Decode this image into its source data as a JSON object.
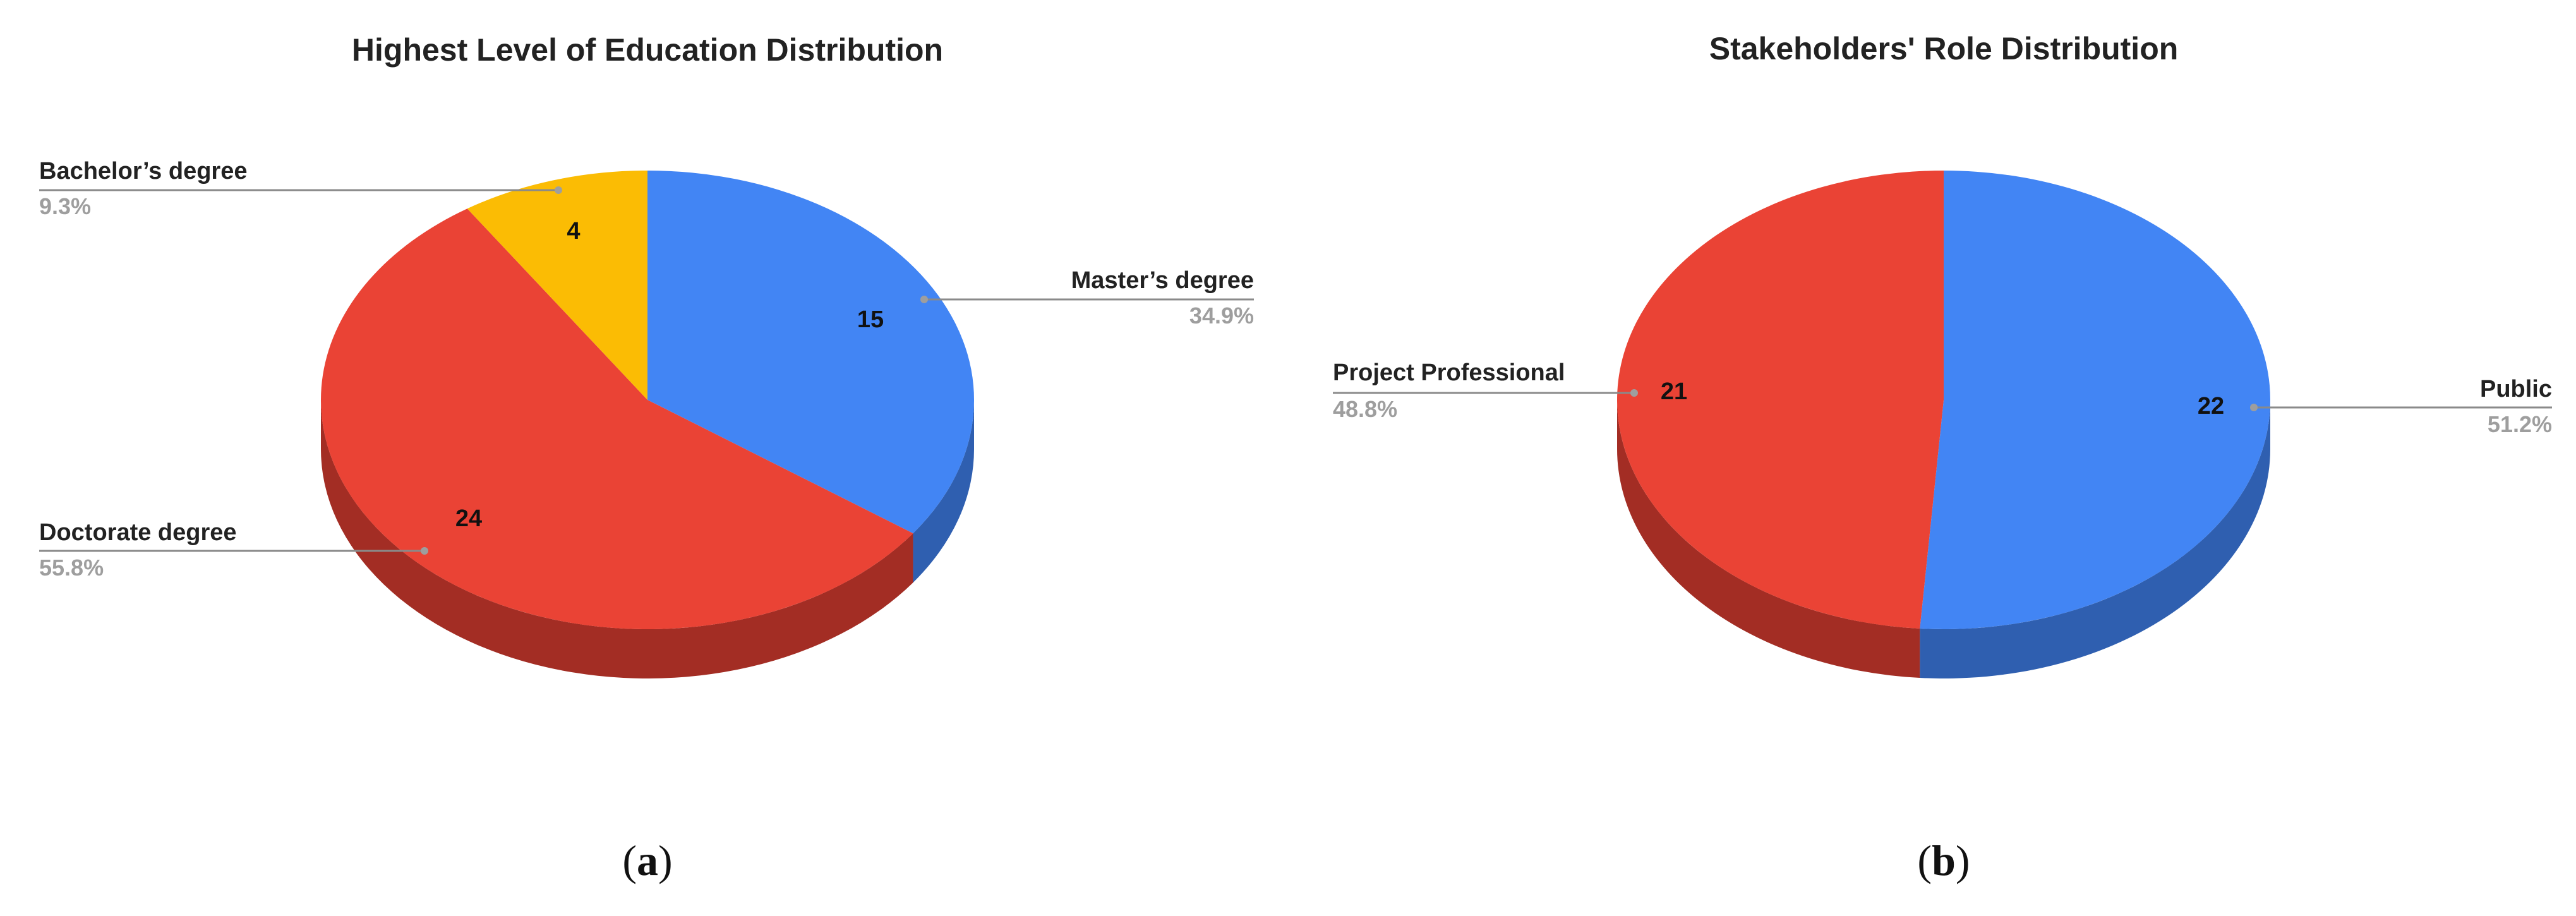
{
  "chart_data": [
    {
      "type": "pie",
      "title": "Highest Level of Education Distribution",
      "caption_letter": "a",
      "slices": [
        {
          "label": "Master’s degree",
          "value": 15,
          "percent_text": "34.9%",
          "color": "#4285f4",
          "side_color": "#2f5fb0"
        },
        {
          "label": "Doctorate degree",
          "value": 24,
          "percent_text": "55.8%",
          "color": "#ea4335",
          "side_color": "#a32d24"
        },
        {
          "label": "Bachelor’s degree",
          "value": 4,
          "percent_text": "9.3%",
          "color": "#fbbc04",
          "side_color": "#c29203"
        }
      ],
      "legend": "none",
      "three_d": true
    },
    {
      "type": "pie",
      "title": "Stakeholders' Role Distribution",
      "caption_letter": "b",
      "slices": [
        {
          "label": "Public",
          "value": 22,
          "percent_text": "51.2%",
          "color": "#4285f4",
          "side_color": "#2f5fb0"
        },
        {
          "label": "Project Professional",
          "value": 21,
          "percent_text": "48.8%",
          "color": "#ea4335",
          "side_color": "#a32d24"
        }
      ],
      "legend": "none",
      "three_d": true
    }
  ],
  "captions": [
    {
      "open": "(",
      "letter": "a",
      "close": ")"
    },
    {
      "open": "(",
      "letter": "b",
      "close": ")"
    }
  ]
}
